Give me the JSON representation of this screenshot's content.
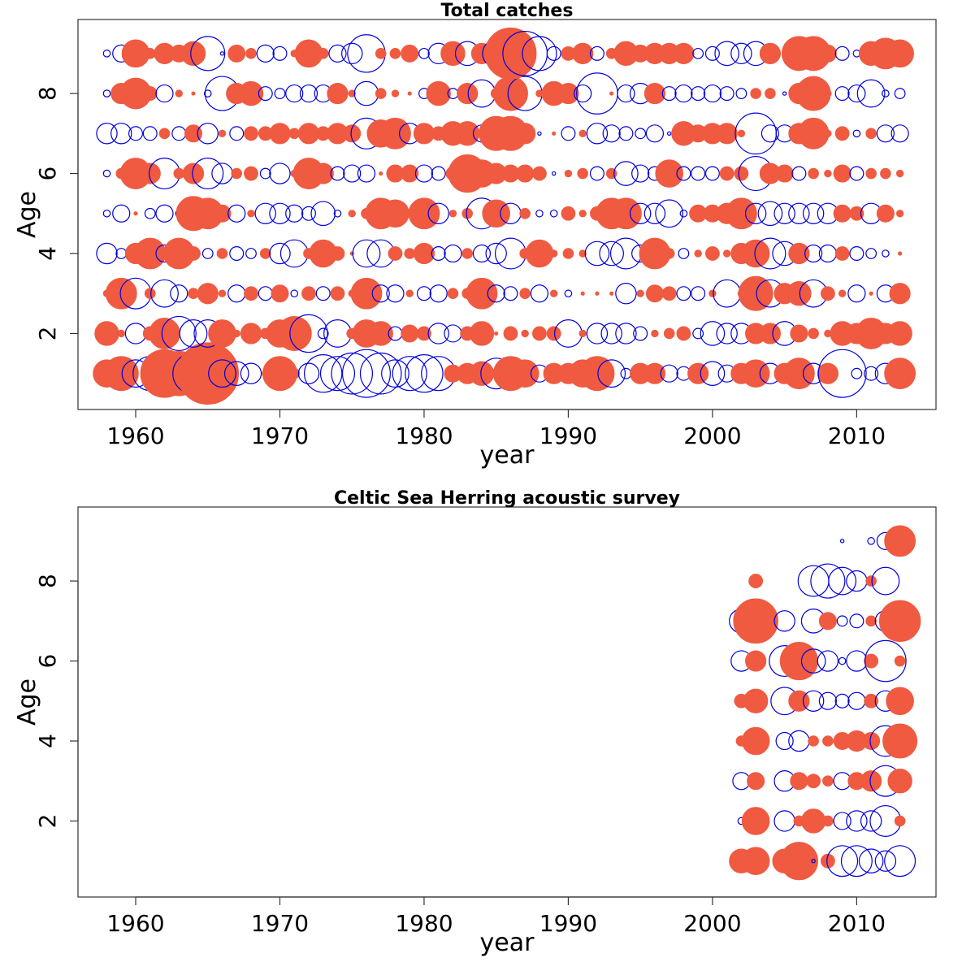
{
  "chart_data": [
    {
      "type": "scatter",
      "subtype": "bubble-residuals",
      "title": "Total catches",
      "xlabel": "year",
      "ylabel": "Age",
      "xlim": [
        1956,
        2015.5
      ],
      "ylim": [
        0.1,
        9.85
      ],
      "x_ticks": [
        1960,
        1970,
        1980,
        1990,
        2000,
        2010
      ],
      "y_ticks": [
        2,
        4,
        6,
        8
      ],
      "grid": false,
      "legend": "none",
      "encoding": {
        "positive_color": "#f05a40",
        "negative_color": "#0000dd",
        "size": "abs_residual"
      },
      "years": [
        1958,
        1959,
        1960,
        1961,
        1962,
        1963,
        1964,
        1965,
        1966,
        1967,
        1968,
        1969,
        1970,
        1971,
        1972,
        1973,
        1974,
        1975,
        1976,
        1977,
        1978,
        1979,
        1980,
        1981,
        1982,
        1983,
        1984,
        1985,
        1986,
        1987,
        1988,
        1989,
        1990,
        1991,
        1992,
        1993,
        1994,
        1995,
        1996,
        1997,
        1998,
        1999,
        2000,
        2001,
        2002,
        2003,
        2004,
        2005,
        2006,
        2007,
        2008,
        2009,
        2010,
        2011,
        2012,
        2013
      ],
      "ages": [
        1,
        2,
        3,
        4,
        5,
        6,
        7,
        8,
        9
      ],
      "residuals": [
        [
          0.8,
          1.0,
          -0.8,
          -1.0,
          1.4,
          1.3,
          -1.2,
          1.8,
          -0.8,
          -0.7,
          -0.6,
          0.2,
          1.0,
          0.3,
          -0.6,
          -1.1,
          -1.0,
          -1.2,
          -1.4,
          -1.2,
          -0.8,
          -1.0,
          -1.1,
          -1.0,
          0.5,
          0.6,
          0.7,
          -0.9,
          1.0,
          0.8,
          -0.5,
          0.6,
          0.6,
          0.8,
          1.0,
          -0.8,
          -0.3,
          0.6,
          0.6,
          -0.5,
          -0.4,
          0.6,
          -0.7,
          -0.5,
          0.6,
          0.8,
          -0.6,
          0.6,
          0.9,
          -0.6,
          0.6,
          -1.4,
          -0.3,
          -0.4,
          -0.6,
          0.9
        ],
        [
          0.7,
          0.2,
          -0.6,
          0.4,
          0.9,
          -1.0,
          -0.8,
          -0.8,
          0.8,
          0.2,
          0.6,
          0.3,
          0.8,
          1.0,
          -1.1,
          -0.3,
          -0.8,
          0.3,
          0.8,
          0.7,
          -0.4,
          0.5,
          0.4,
          -0.6,
          -0.5,
          0.4,
          0.7,
          0.1,
          0.4,
          0.2,
          0.4,
          0.4,
          -0.8,
          0.2,
          -0.6,
          -0.6,
          -0.6,
          -0.4,
          0.2,
          0.3,
          0.4,
          -0.3,
          -0.7,
          -0.6,
          -0.6,
          0.6,
          0.6,
          -0.7,
          0.5,
          0.3,
          0.2,
          0.7,
          0.6,
          0.9,
          0.6,
          0.7
        ],
        [
          0.2,
          0.9,
          -0.9,
          0.3,
          -0.8,
          -0.5,
          0.3,
          0.6,
          0.2,
          -0.5,
          0.4,
          -0.4,
          0.5,
          -0.2,
          0.4,
          -0.4,
          0.4,
          0.2,
          0.9,
          -0.5,
          -0.5,
          0.2,
          -0.4,
          -0.5,
          0.3,
          0.3,
          0.9,
          -0.5,
          -0.4,
          0.3,
          -0.5,
          0.2,
          -0.2,
          0.1,
          0.1,
          0.1,
          -0.6,
          0.2,
          0.5,
          0.4,
          -0.4,
          -0.4,
          0.2,
          -0.8,
          0.2,
          1.0,
          -0.8,
          0.6,
          0.7,
          -0.8,
          0.4,
          0.2,
          -0.5,
          0.1,
          -0.5,
          0.6
        ],
        [
          -0.6,
          -0.3,
          0.6,
          0.9,
          -0.5,
          0.9,
          0.4,
          -0.3,
          0.3,
          -0.4,
          -0.3,
          0.3,
          -0.6,
          -0.8,
          0.3,
          0.8,
          0.4,
          0.1,
          -0.8,
          -0.8,
          0.4,
          0.3,
          0.6,
          -0.4,
          -0.5,
          0.3,
          -0.5,
          -0.6,
          -0.9,
          0.3,
          0.8,
          0.2,
          0.3,
          0.2,
          -0.7,
          -0.7,
          -0.9,
          -0.5,
          0.9,
          0.3,
          -0.3,
          0.2,
          0.4,
          0.2,
          0.6,
          0.8,
          -0.9,
          -0.7,
          0.6,
          -0.5,
          -0.5,
          0.4,
          -0.4,
          -0.3,
          -0.2,
          0.1
        ],
        [
          -0.2,
          -0.5,
          0.1,
          -0.3,
          -0.5,
          -0.2,
          1.0,
          0.9,
          0.5,
          -0.5,
          0.2,
          -0.6,
          -0.6,
          -0.5,
          -0.4,
          -0.7,
          -0.2,
          0.2,
          0.3,
          0.9,
          0.8,
          0.2,
          0.9,
          -0.6,
          0.2,
          0.3,
          -0.9,
          0.8,
          -0.6,
          0.3,
          -0.2,
          -0.2,
          0.4,
          0.2,
          0.4,
          0.9,
          0.9,
          -0.6,
          -0.6,
          -0.8,
          -0.2,
          0.5,
          0.5,
          0.6,
          0.9,
          -0.6,
          -0.7,
          -0.6,
          -0.6,
          -0.6,
          -0.6,
          0.5,
          0.4,
          -0.6,
          0.5,
          0.2
        ],
        [
          -0.2,
          0.3,
          0.9,
          0.6,
          -0.9,
          0.3,
          0.6,
          -0.9,
          -0.6,
          0.3,
          0.4,
          -0.3,
          -0.6,
          0.2,
          0.9,
          0.6,
          -0.4,
          -0.5,
          -0.5,
          0.1,
          0.5,
          0.5,
          -0.5,
          -0.4,
          0.4,
          1.1,
          0.8,
          0.6,
          0.5,
          0.5,
          0.4,
          -0.1,
          0.2,
          0.3,
          -0.4,
          0.3,
          -0.7,
          -0.5,
          -0.4,
          0.8,
          -0.4,
          -0.4,
          -0.4,
          0.4,
          0.4,
          -1.0,
          0.6,
          0.5,
          -0.4,
          0.3,
          0.2,
          0.5,
          -0.4,
          0.3,
          0.3,
          0.2
        ],
        [
          -0.6,
          -0.6,
          -0.4,
          -0.4,
          0.3,
          -0.4,
          0.5,
          -0.6,
          0.2,
          -0.4,
          0.4,
          0.4,
          0.6,
          0.3,
          0.6,
          0.4,
          0.6,
          0.5,
          -0.9,
          0.8,
          0.9,
          -0.6,
          0.6,
          0.4,
          0.7,
          0.7,
          -0.5,
          1.0,
          1.0,
          0.6,
          -0.1,
          0.1,
          -0.4,
          0.2,
          -0.6,
          -0.5,
          -0.4,
          -0.3,
          -0.5,
          -0.1,
          0.7,
          0.5,
          0.6,
          0.6,
          0.2,
          -1.2,
          -0.5,
          -0.5,
          0.6,
          0.9,
          0.2,
          0.4,
          -0.2,
          0.3,
          -0.5,
          -0.5
        ],
        [
          -0.2,
          0.6,
          0.9,
          0.4,
          -0.5,
          0.2,
          0.1,
          -0.2,
          -1.0,
          0.6,
          0.7,
          -0.4,
          -0.3,
          -0.5,
          -0.5,
          -0.5,
          0.6,
          0.2,
          -0.7,
          0.3,
          0.2,
          0.1,
          -0.3,
          0.7,
          -0.3,
          0.6,
          -0.8,
          0.3,
          1.0,
          -1.0,
          0.2,
          0.7,
          0.6,
          -0.5,
          -1.2,
          0.1,
          -0.5,
          -0.6,
          0.6,
          -0.4,
          -0.5,
          -0.4,
          -0.5,
          -0.4,
          -0.3,
          0.3,
          0.3,
          -0.1,
          0.6,
          1.0,
          0.2,
          -0.4,
          -0.5,
          -0.8,
          -0.2,
          -0.3
        ],
        [
          -0.2,
          -0.5,
          0.8,
          0.3,
          0.6,
          0.5,
          0.7,
          -1.0,
          -0.1,
          0.5,
          0.3,
          -0.5,
          -0.4,
          0.2,
          0.8,
          0.3,
          -0.5,
          -0.6,
          -1.1,
          0.3,
          0.3,
          0.5,
          -0.3,
          -0.6,
          0.7,
          -0.7,
          0.6,
          -0.8,
          1.5,
          -1.3,
          -1.0,
          -0.4,
          0.4,
          0.6,
          -0.4,
          0.3,
          0.7,
          0.5,
          0.6,
          0.6,
          0.6,
          -0.3,
          -0.4,
          -0.7,
          -0.6,
          -0.7,
          0.6,
          -0.1,
          1.0,
          1.0,
          0.5,
          -0.4,
          -0.2,
          0.7,
          0.9,
          0.8
        ]
      ]
    },
    {
      "type": "scatter",
      "subtype": "bubble-residuals",
      "title": "Celtic Sea Herring acoustic survey",
      "xlabel": "year",
      "ylabel": "Age",
      "xlim": [
        1956,
        2015.5
      ],
      "ylim": [
        0.1,
        9.85
      ],
      "x_ticks": [
        1960,
        1970,
        1980,
        1990,
        2000,
        2010
      ],
      "y_ticks": [
        2,
        4,
        6,
        8
      ],
      "grid": false,
      "legend": "none",
      "encoding": {
        "positive_color": "#f05a40",
        "negative_color": "#0000dd",
        "size": "abs_residual"
      },
      "years": [
        2002,
        2003,
        2004,
        2005,
        2006,
        2007,
        2008,
        2009,
        2010,
        2011,
        2012,
        2013
      ],
      "ages": [
        1,
        2,
        3,
        4,
        5,
        6,
        7,
        8,
        9
      ],
      "residuals": [
        [
          0.7,
          0.8,
          null,
          0.7,
          1.1,
          -0.1,
          0.4,
          -0.9,
          -0.9,
          -0.7,
          -0.6,
          -0.9
        ],
        [
          -0.2,
          0.8,
          null,
          -0.6,
          0.3,
          0.7,
          0.3,
          -0.5,
          -0.6,
          -0.6,
          -0.9,
          0.3
        ],
        [
          -0.5,
          0.5,
          null,
          -0.6,
          0.5,
          0.4,
          0.3,
          -0.5,
          0.5,
          0.6,
          -0.9,
          0.7
        ],
        [
          0.3,
          0.8,
          null,
          -0.5,
          -0.6,
          0.3,
          0.3,
          0.5,
          0.6,
          0.5,
          -0.9,
          1.0
        ],
        [
          0.4,
          0.7,
          null,
          -0.8,
          0.6,
          -0.6,
          -0.5,
          -0.4,
          -0.5,
          0.4,
          -0.6,
          0.8
        ],
        [
          -0.6,
          0.6,
          null,
          -0.9,
          1.1,
          -0.7,
          -0.6,
          -0.2,
          -0.6,
          0.4,
          -1.2,
          0.3
        ],
        [
          -0.7,
          1.3,
          null,
          -0.6,
          null,
          -0.7,
          0.5,
          -0.3,
          -0.4,
          0.3,
          -0.6,
          1.2
        ],
        [
          null,
          0.4,
          null,
          null,
          null,
          -0.9,
          -1.0,
          -0.8,
          -0.6,
          0.3,
          -0.8,
          null
        ],
        [
          null,
          null,
          null,
          null,
          null,
          null,
          null,
          -0.1,
          null,
          -0.2,
          -0.5,
          0.9
        ]
      ]
    }
  ]
}
